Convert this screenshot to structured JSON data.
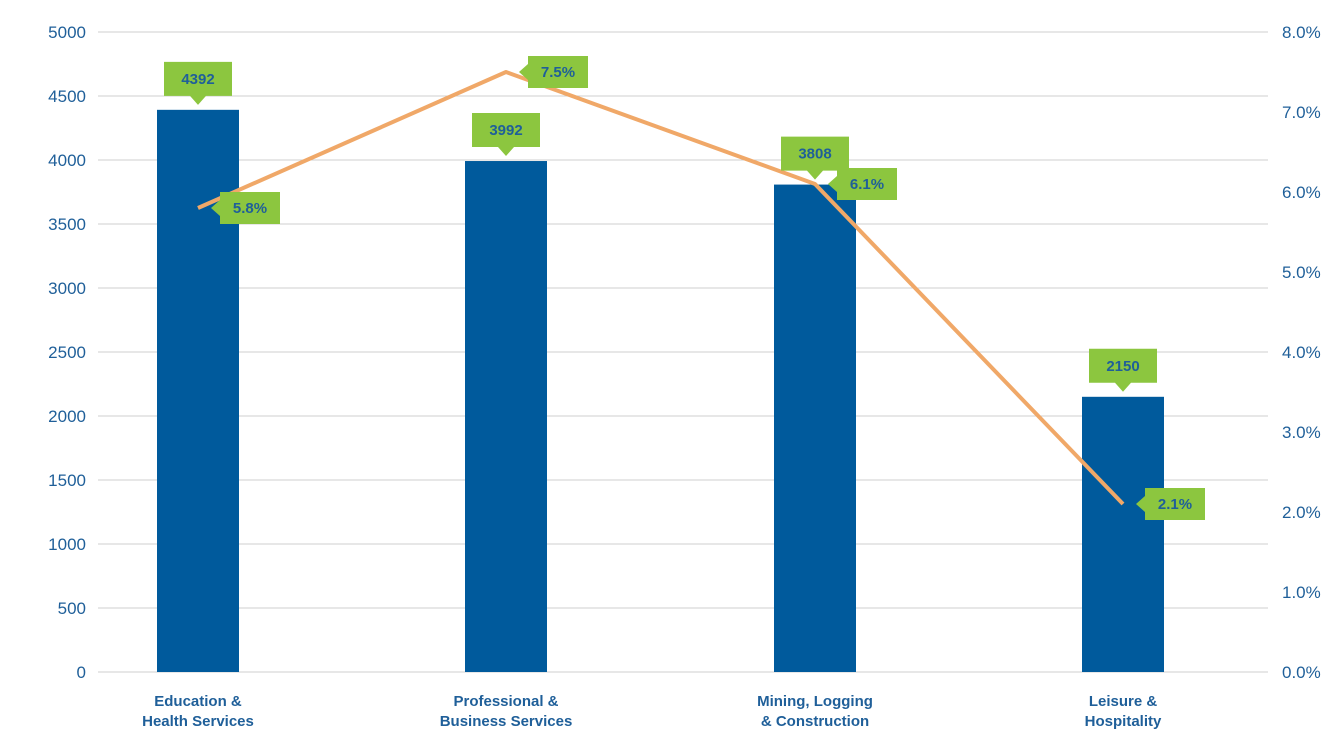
{
  "chart_data": {
    "type": "bar",
    "categories": [
      [
        "Education &",
        "Health Services"
      ],
      [
        "Professional &",
        "Business Services"
      ],
      [
        "Mining, Logging",
        "& Construction"
      ],
      [
        "Leisure &",
        "Hospitality"
      ]
    ],
    "series": [
      {
        "type": "bar",
        "axis": "left",
        "values": [
          4392,
          3992,
          3808,
          2150
        ],
        "labels": [
          "4392",
          "3992",
          "3808",
          "2150"
        ]
      },
      {
        "type": "line",
        "axis": "right",
        "values": [
          5.8,
          7.5,
          6.1,
          2.1
        ],
        "labels": [
          "5.8%",
          "7.5%",
          "6.1%",
          "2.1%"
        ]
      }
    ],
    "y_left": {
      "min": 0,
      "max": 5000,
      "ticks": [
        "0",
        "500",
        "1000",
        "1500",
        "2000",
        "2500",
        "3000",
        "3500",
        "4000",
        "4500",
        "5000"
      ]
    },
    "y_right": {
      "min": 0,
      "max": 8,
      "ticks": [
        "0.0%",
        "1.0%",
        "2.0%",
        "3.0%",
        "4.0%",
        "5.0%",
        "6.0%",
        "7.0%",
        "8.0%"
      ]
    },
    "grid": true,
    "legend": "none",
    "colors": {
      "bar": "#005a9c",
      "line": "#f0a868",
      "label_bg": "#8cc63f",
      "text": "#1f5f99"
    }
  }
}
